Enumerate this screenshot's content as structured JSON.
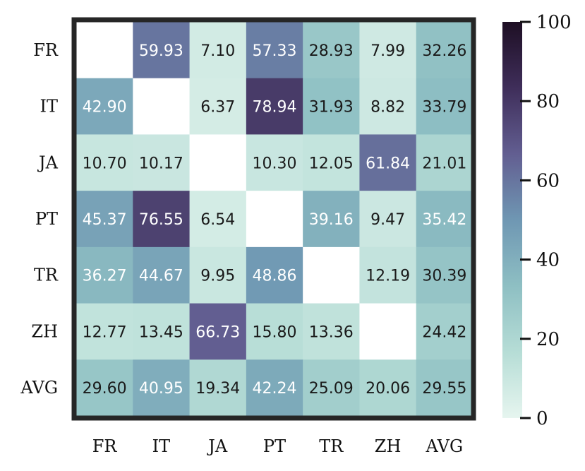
{
  "chart_data": {
    "type": "heatmap",
    "row_labels": [
      "FR",
      "IT",
      "JA",
      "PT",
      "TR",
      "ZH",
      "AVG"
    ],
    "col_labels": [
      "FR",
      "IT",
      "JA",
      "PT",
      "TR",
      "ZH",
      "AVG"
    ],
    "values": [
      [
        null,
        59.93,
        7.1,
        57.33,
        28.93,
        7.99,
        32.26
      ],
      [
        42.9,
        null,
        6.37,
        78.94,
        31.93,
        8.82,
        33.79
      ],
      [
        10.7,
        10.17,
        null,
        10.3,
        12.05,
        61.84,
        21.01
      ],
      [
        45.37,
        76.55,
        6.54,
        null,
        39.16,
        9.47,
        35.42
      ],
      [
        36.27,
        44.67,
        9.95,
        48.86,
        null,
        12.19,
        30.39
      ],
      [
        12.77,
        13.45,
        66.73,
        15.8,
        13.36,
        null,
        24.42
      ],
      [
        29.6,
        40.95,
        19.34,
        42.24,
        25.09,
        20.06,
        29.55
      ]
    ],
    "value_labels": [
      [
        "",
        "59.93",
        "7.10",
        "57.33",
        "28.93",
        "7.99",
        "32.26"
      ],
      [
        "42.90",
        "",
        "6.37",
        "78.94",
        "31.93",
        "8.82",
        "33.79"
      ],
      [
        "10.70",
        "10.17",
        "",
        "10.30",
        "12.05",
        "61.84",
        "21.01"
      ],
      [
        "45.37",
        "76.55",
        "6.54",
        "",
        "39.16",
        "9.47",
        "35.42"
      ],
      [
        "36.27",
        "44.67",
        "9.95",
        "48.86",
        "",
        "12.19",
        "30.39"
      ],
      [
        "12.77",
        "13.45",
        "66.73",
        "15.80",
        "13.36",
        "",
        "24.42"
      ],
      [
        "29.60",
        "40.95",
        "19.34",
        "42.24",
        "25.09",
        "20.06",
        "29.55"
      ]
    ],
    "colorbar": {
      "range": [
        0,
        100
      ],
      "ticks": [
        0,
        20,
        40,
        60,
        80,
        100
      ],
      "tick_labels": [
        "0",
        "20",
        "40",
        "60",
        "80",
        "100"
      ],
      "colormap": [
        "#e6f5ef",
        "#b6ddd6",
        "#8ebfc3",
        "#6f97b3",
        "#625e91",
        "#3f2e5a",
        "#1e0f24"
      ]
    },
    "frame_color": "#262626",
    "missing_color": "#ffffff"
  }
}
